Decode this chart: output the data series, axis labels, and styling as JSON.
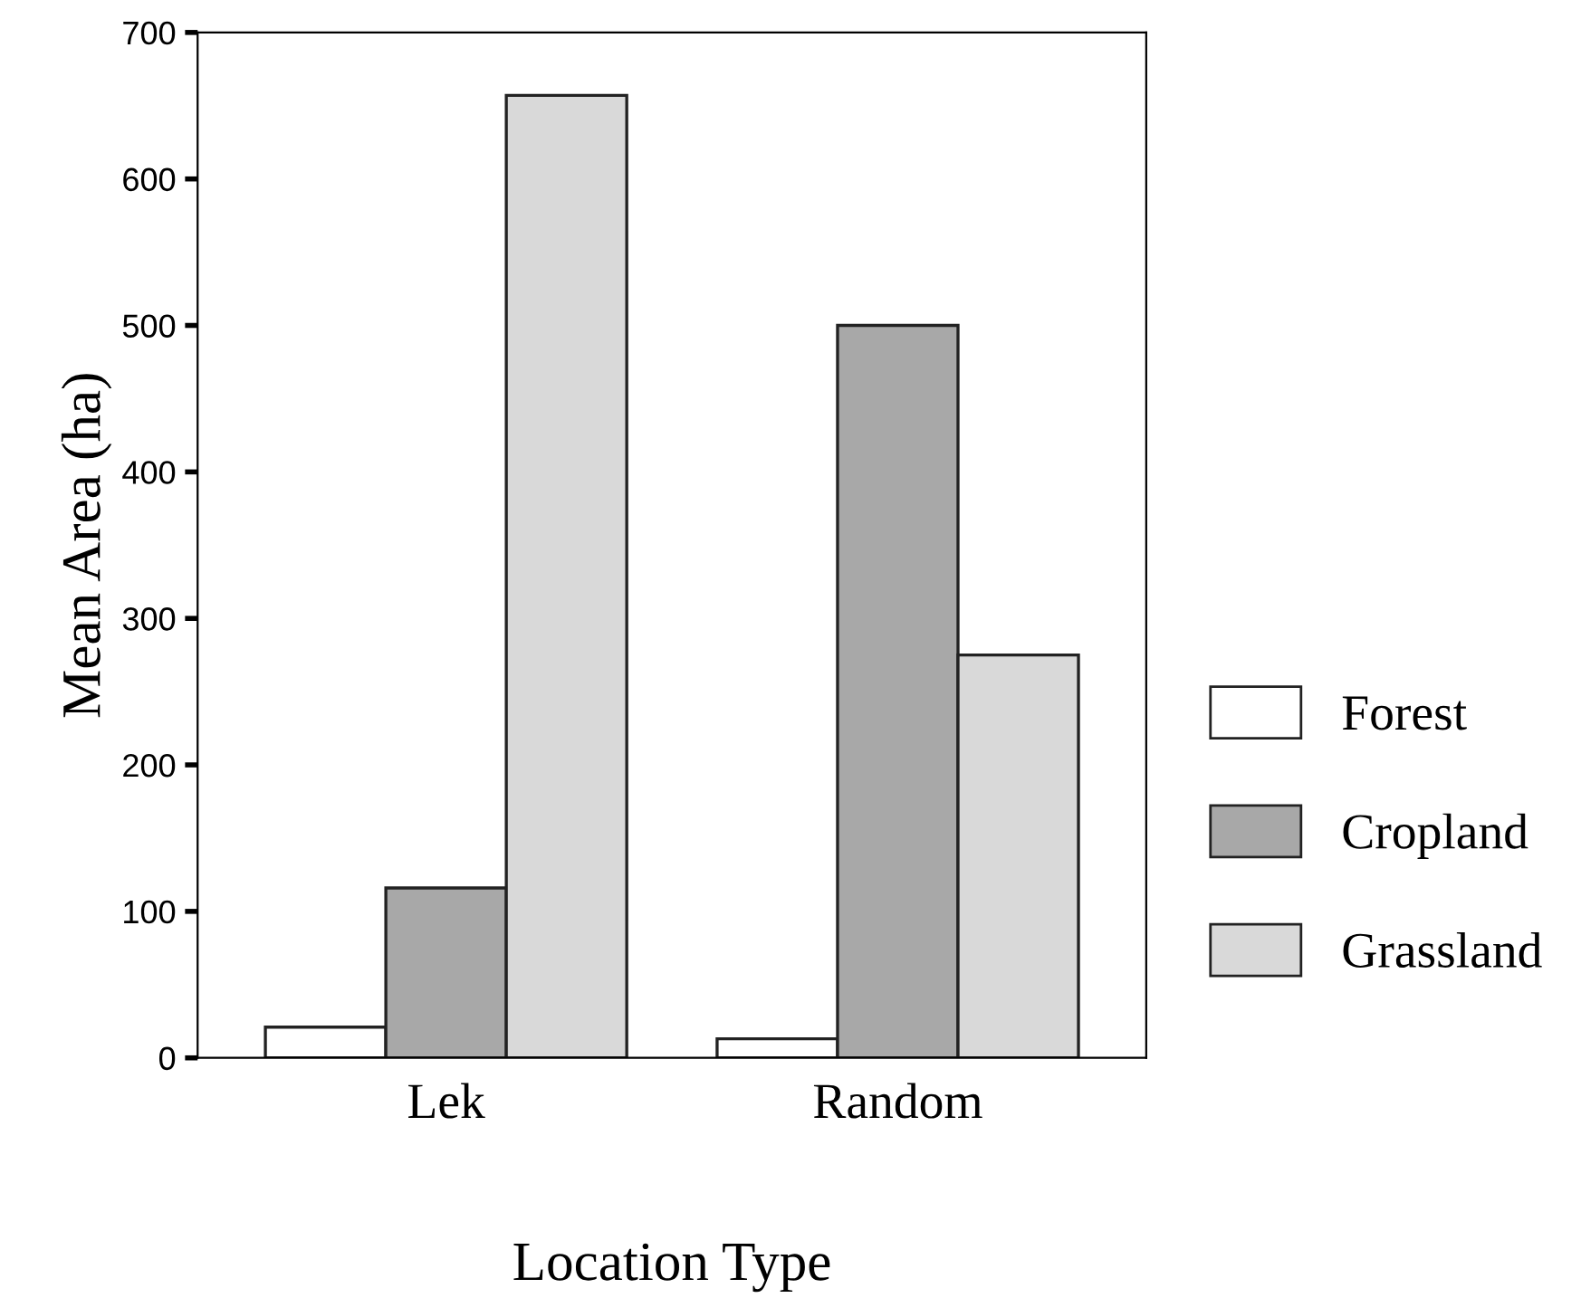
{
  "chart_data": {
    "type": "bar",
    "xlabel": "Location Type",
    "ylabel": "Mean Area (ha)",
    "categories": [
      "Lek",
      "Random"
    ],
    "series": [
      {
        "name": "Forest",
        "color": "#ffffff",
        "values": [
          21,
          13
        ]
      },
      {
        "name": "Cropland",
        "color": "#a8a8a8",
        "values": [
          116,
          500
        ]
      },
      {
        "name": "Grassland",
        "color": "#d9d9d9",
        "values": [
          657,
          275
        ]
      }
    ],
    "ylim": [
      0,
      700
    ],
    "yticks": [
      0,
      100,
      200,
      300,
      400,
      500,
      600,
      700
    ],
    "grid": false,
    "legend": "right"
  }
}
